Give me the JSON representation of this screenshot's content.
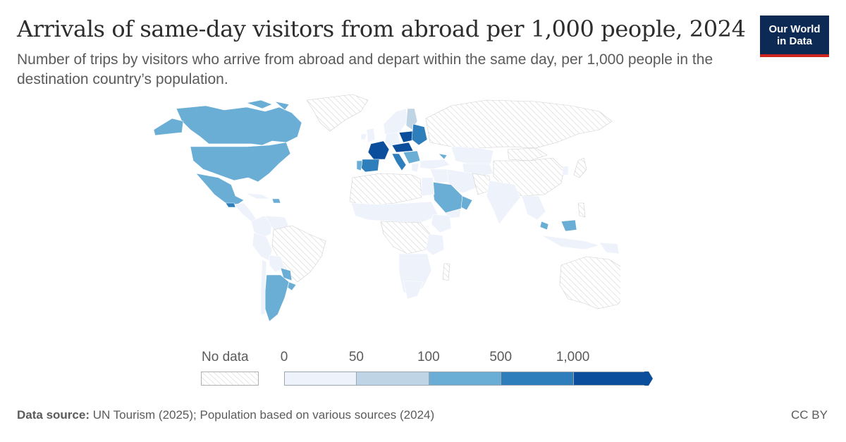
{
  "header": {
    "title": "Arrivals of same-day visitors from abroad per 1,000 people, 2024",
    "subtitle": "Number of trips by visitors who arrive from abroad and depart within the same day, per 1,000 people in the destination country’s population.",
    "logo_line1": "Our World",
    "logo_line2": "in Data"
  },
  "legend": {
    "no_data_label": "No data",
    "bins": [
      {
        "from": 0,
        "to": 50,
        "color": "#eef2fb"
      },
      {
        "from": 50,
        "to": 100,
        "color": "#bfd5e6"
      },
      {
        "from": 100,
        "to": 500,
        "color": "#6aaed6"
      },
      {
        "from": 500,
        "to": 1000,
        "color": "#2e7ebc"
      },
      {
        "from": 1000,
        "to": null,
        "color": "#0b4f9c"
      }
    ],
    "tick_labels": [
      "0",
      "50",
      "100",
      "500",
      "1,000"
    ]
  },
  "colors": {
    "no_data_hatch": "#cfcfcf",
    "country_border": "#ffffff",
    "logo_bg": "#0d2a55",
    "logo_accent": "#ce261e"
  },
  "footer": {
    "source_label": "Data source:",
    "source_text": " UN Tourism (2025); Population based on various sources (2024)",
    "license": "CC BY"
  }
}
